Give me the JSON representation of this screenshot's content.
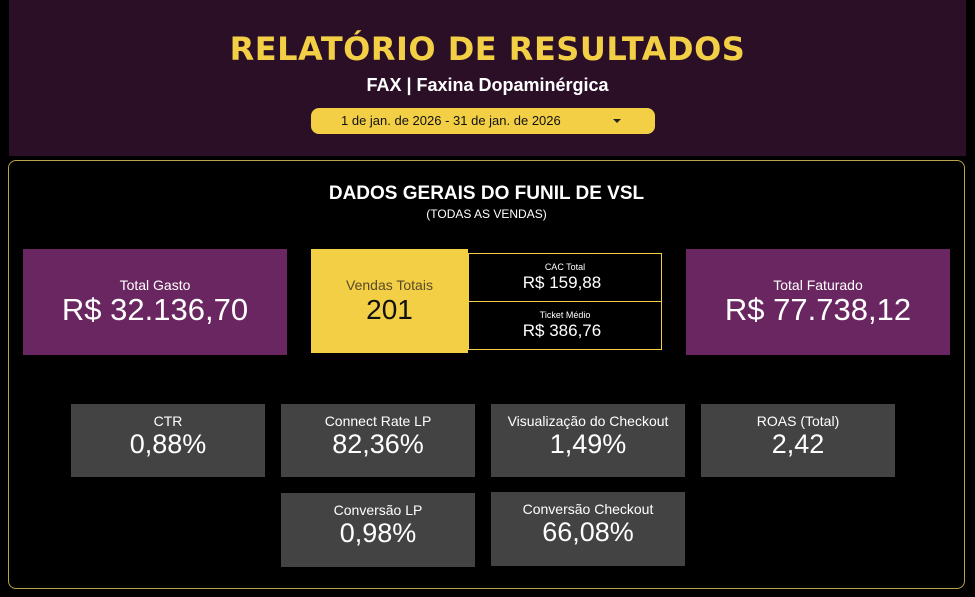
{
  "header": {
    "title": "RELATÓRIO DE RESULTADOS",
    "subtitle": "FAX | Faxina Dopaminérgica",
    "date_range": "1 de jan. de 2026 - 31 de jan. de 2026"
  },
  "panel": {
    "title": "DADOS GERAIS DO FUNIL DE VSL",
    "subtitle": "(TODAS AS VENDAS)"
  },
  "kpis": {
    "total_gasto": {
      "label": "Total Gasto",
      "value": "R$ 32.136,70"
    },
    "vendas_totais": {
      "label": "Vendas Totais",
      "value": "201"
    },
    "cac_total": {
      "label": "CAC Total",
      "value": "R$ 159,88"
    },
    "ticket_medio": {
      "label": "Ticket Médio",
      "value": "R$ 386,76"
    },
    "total_faturado": {
      "label": "Total Faturado",
      "value": "R$ 77.738,12"
    }
  },
  "metrics": {
    "ctr": {
      "label": "CTR",
      "value": "0,88%"
    },
    "connect_rate_lp": {
      "label": "Connect Rate LP",
      "value": "82,36%"
    },
    "visualizacao_checkout": {
      "label": "Visualização do Checkout",
      "value": "1,49%"
    },
    "roas_total": {
      "label": "ROAS (Total)",
      "value": "2,42"
    },
    "conversao_lp": {
      "label": "Conversão LP",
      "value": "0,98%"
    },
    "conversao_checkout": {
      "label": "Conversão Checkout",
      "value": "66,08%"
    }
  },
  "colors": {
    "header_bg": "#2b0f26",
    "accent_yellow": "#f2cf45",
    "card_purple": "#6a2660",
    "metric_gray": "#434343"
  }
}
